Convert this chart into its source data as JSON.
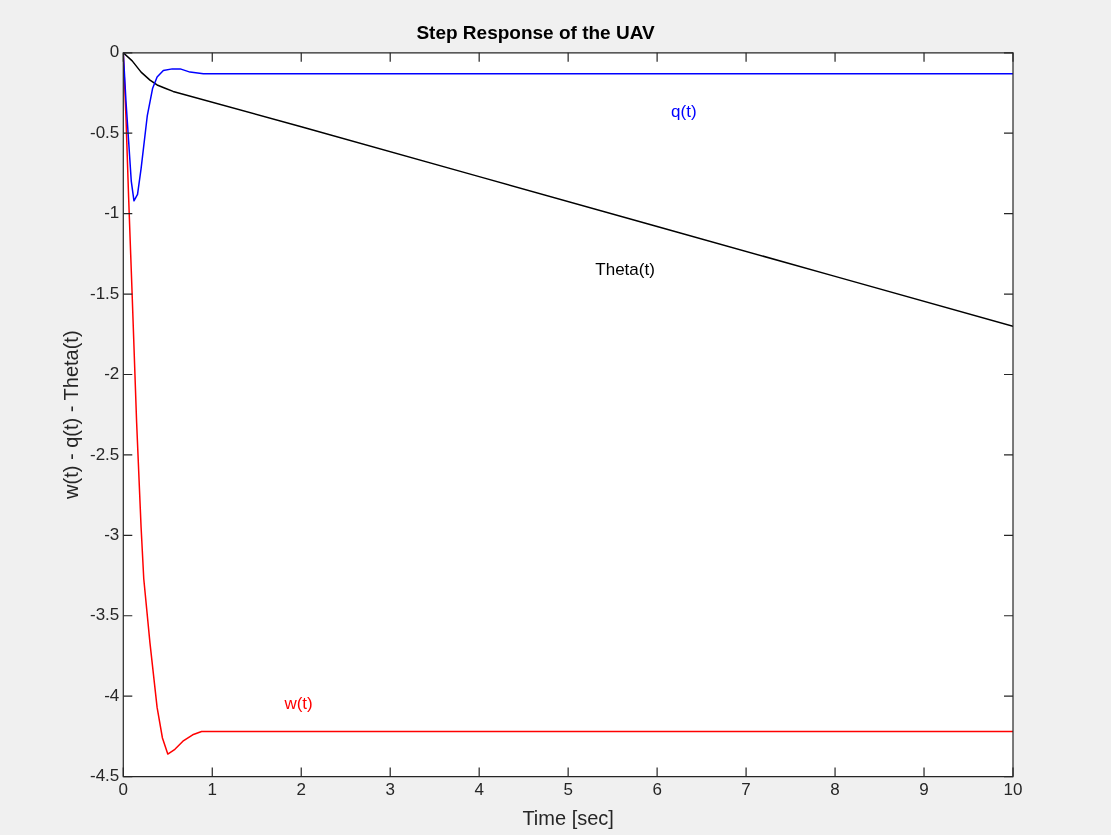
{
  "chart_data": {
    "type": "line",
    "title": "Step Response of the UAV",
    "xlabel": "Time [sec]",
    "ylabel": "w(t) - q(t) - Theta(t)",
    "xlim": [
      0,
      10
    ],
    "xticks": [
      0,
      1,
      2,
      3,
      4,
      5,
      6,
      7,
      8,
      9,
      10
    ],
    "ylim": [
      -4.5,
      0
    ],
    "yticks": [
      -4.5,
      -4,
      -3.5,
      -3,
      -2.5,
      -2,
      -1.5,
      -1,
      -0.5,
      0
    ],
    "grid": false,
    "legend": false,
    "marker": "none",
    "line_style": "solid",
    "series": [
      {
        "name": "q(t)",
        "color": "#0000ff",
        "x": [
          0,
          0.03,
          0.06,
          0.09,
          0.12,
          0.16,
          0.2,
          0.27,
          0.33,
          0.38,
          0.45,
          0.55,
          0.64,
          0.75,
          0.9,
          1.0,
          2,
          4,
          6,
          8,
          10
        ],
        "values": [
          0,
          -0.3,
          -0.55,
          -0.8,
          -0.92,
          -0.88,
          -0.72,
          -0.39,
          -0.22,
          -0.15,
          -0.11,
          -0.1,
          -0.1,
          -0.12,
          -0.13,
          -0.13,
          -0.13,
          -0.13,
          -0.13,
          -0.13,
          -0.13
        ]
      },
      {
        "name": "Theta(t)",
        "color": "#000000",
        "x": [
          0,
          0.1,
          0.2,
          0.3,
          0.38,
          0.47,
          0.56,
          2,
          4,
          6,
          8,
          10
        ],
        "values": [
          0,
          -0.05,
          -0.12,
          -0.17,
          -0.2,
          -0.22,
          -0.24,
          -0.46,
          -0.77,
          -1.08,
          -1.39,
          -1.7
        ]
      },
      {
        "name": "w(t)",
        "color": "#ff0000",
        "x": [
          0,
          0.03,
          0.06,
          0.1,
          0.15,
          0.2,
          0.23,
          0.3,
          0.38,
          0.44,
          0.5,
          0.58,
          0.67,
          0.78,
          0.88,
          1.0,
          2,
          4,
          6,
          8,
          10
        ],
        "values": [
          0,
          -0.4,
          -0.9,
          -1.51,
          -2.3,
          -2.95,
          -3.27,
          -3.67,
          -4.07,
          -4.26,
          -4.36,
          -4.33,
          -4.28,
          -4.24,
          -4.22,
          -4.22,
          -4.22,
          -4.22,
          -4.22,
          -4.22,
          -4.22
        ]
      }
    ]
  }
}
